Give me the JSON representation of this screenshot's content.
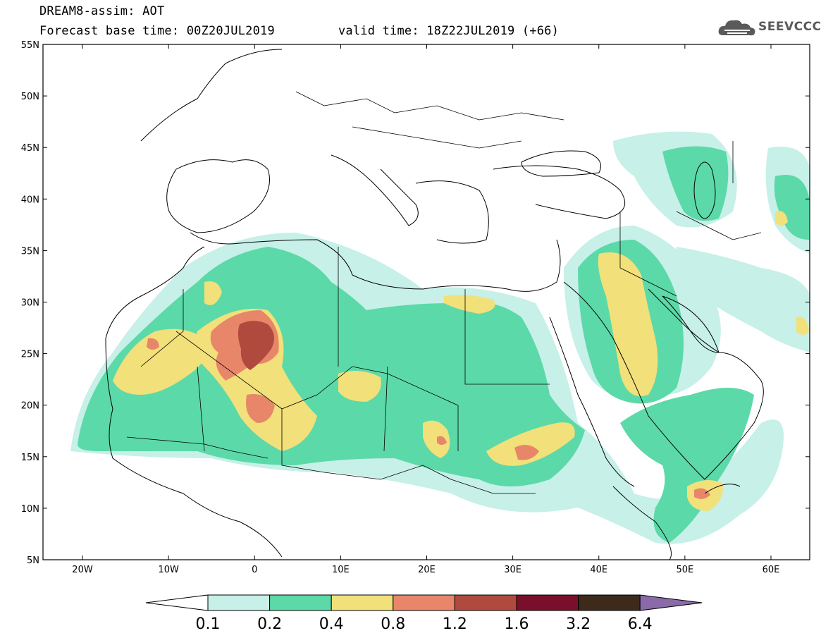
{
  "header": {
    "title_line1": "DREAM8-assim: AOT",
    "title_line2a": "Forecast base time: 00Z20JUL2019",
    "title_line2b": "valid time: 18Z22JUL2019 (+66)",
    "logo_text": "SEEVCCC"
  },
  "map": {
    "lat_labels": [
      "55N",
      "50N",
      "45N",
      "40N",
      "35N",
      "30N",
      "25N",
      "20N",
      "15N",
      "10N",
      "5N"
    ],
    "lon_labels": [
      "20W",
      "10W",
      "0",
      "10E",
      "20E",
      "30E",
      "40E",
      "50E",
      "60E"
    ],
    "field": "AOT"
  },
  "colorbar": {
    "levels": [
      "0.1",
      "0.2",
      "0.4",
      "0.8",
      "1.2",
      "1.6",
      "3.2",
      "6.4"
    ],
    "colors": [
      "#ffffff",
      "#c6f0e8",
      "#5cd9a8",
      "#f2e07a",
      "#e8866a",
      "#b04a3f",
      "#7a0f2b",
      "#3d2a1a",
      "#8a6aa8"
    ]
  }
}
